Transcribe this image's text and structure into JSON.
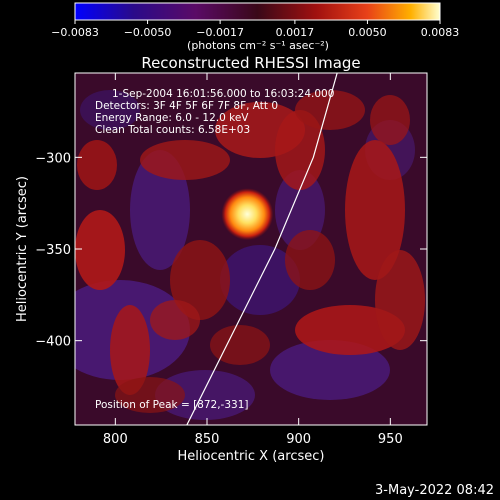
{
  "colors": {
    "background": "#000000",
    "foreground": "#ffffff",
    "colormap": [
      "#0000ff",
      "#3a0060",
      "#5a1070",
      "#3a0a2a",
      "#a01010",
      "#e8401a",
      "#ffb000",
      "#ffffc0"
    ]
  },
  "colorbar": {
    "range": [
      -0.0083,
      0.0083
    ],
    "tick_values": [
      -0.0083,
      -0.005,
      -0.0017,
      0.0017,
      0.005,
      0.0083
    ],
    "tick_labels": [
      "−0.0083",
      "−0.0050",
      "−0.0017",
      "0.0017",
      "0.0050",
      "0.0083"
    ],
    "units_text": "(photons cm⁻² s⁻¹ asec⁻²)"
  },
  "chart_data": {
    "type": "heatmap",
    "title": "Reconstructed RHESSI Image",
    "xlabel": "Heliocentric X (arcsec)",
    "ylabel": "Heliocentric Y (arcsec)",
    "xlim": [
      778,
      970
    ],
    "ylim": [
      -446,
      -254
    ],
    "x_ticks": [
      800,
      850,
      900,
      950
    ],
    "x_tick_labels": [
      "800",
      "850",
      "900",
      "950"
    ],
    "y_ticks": [
      -300,
      -350,
      -400
    ],
    "y_tick_labels": [
      "−300",
      "−350",
      "−400"
    ],
    "info_lines": [
      "1-Sep-2004 16:01:56.000 to 16:03:24.000",
      "Detectors: 3F 4F 5F 6F 7F 8F, Att 0",
      "Energy Range: 6.0 - 12.0 keV",
      "Clean    Total counts: 6.58E+03"
    ],
    "peak_label": "Position of Peak = [872,-331]",
    "peak": {
      "x": 872,
      "y": -331,
      "value": 0.0083
    },
    "limb_curve": [
      [
        839,
        -446
      ],
      [
        862,
        -400
      ],
      [
        887,
        -350
      ],
      [
        908,
        -300
      ],
      [
        921,
        -254
      ]
    ]
  },
  "footer": {
    "date": "3-May-2022 08:42"
  }
}
